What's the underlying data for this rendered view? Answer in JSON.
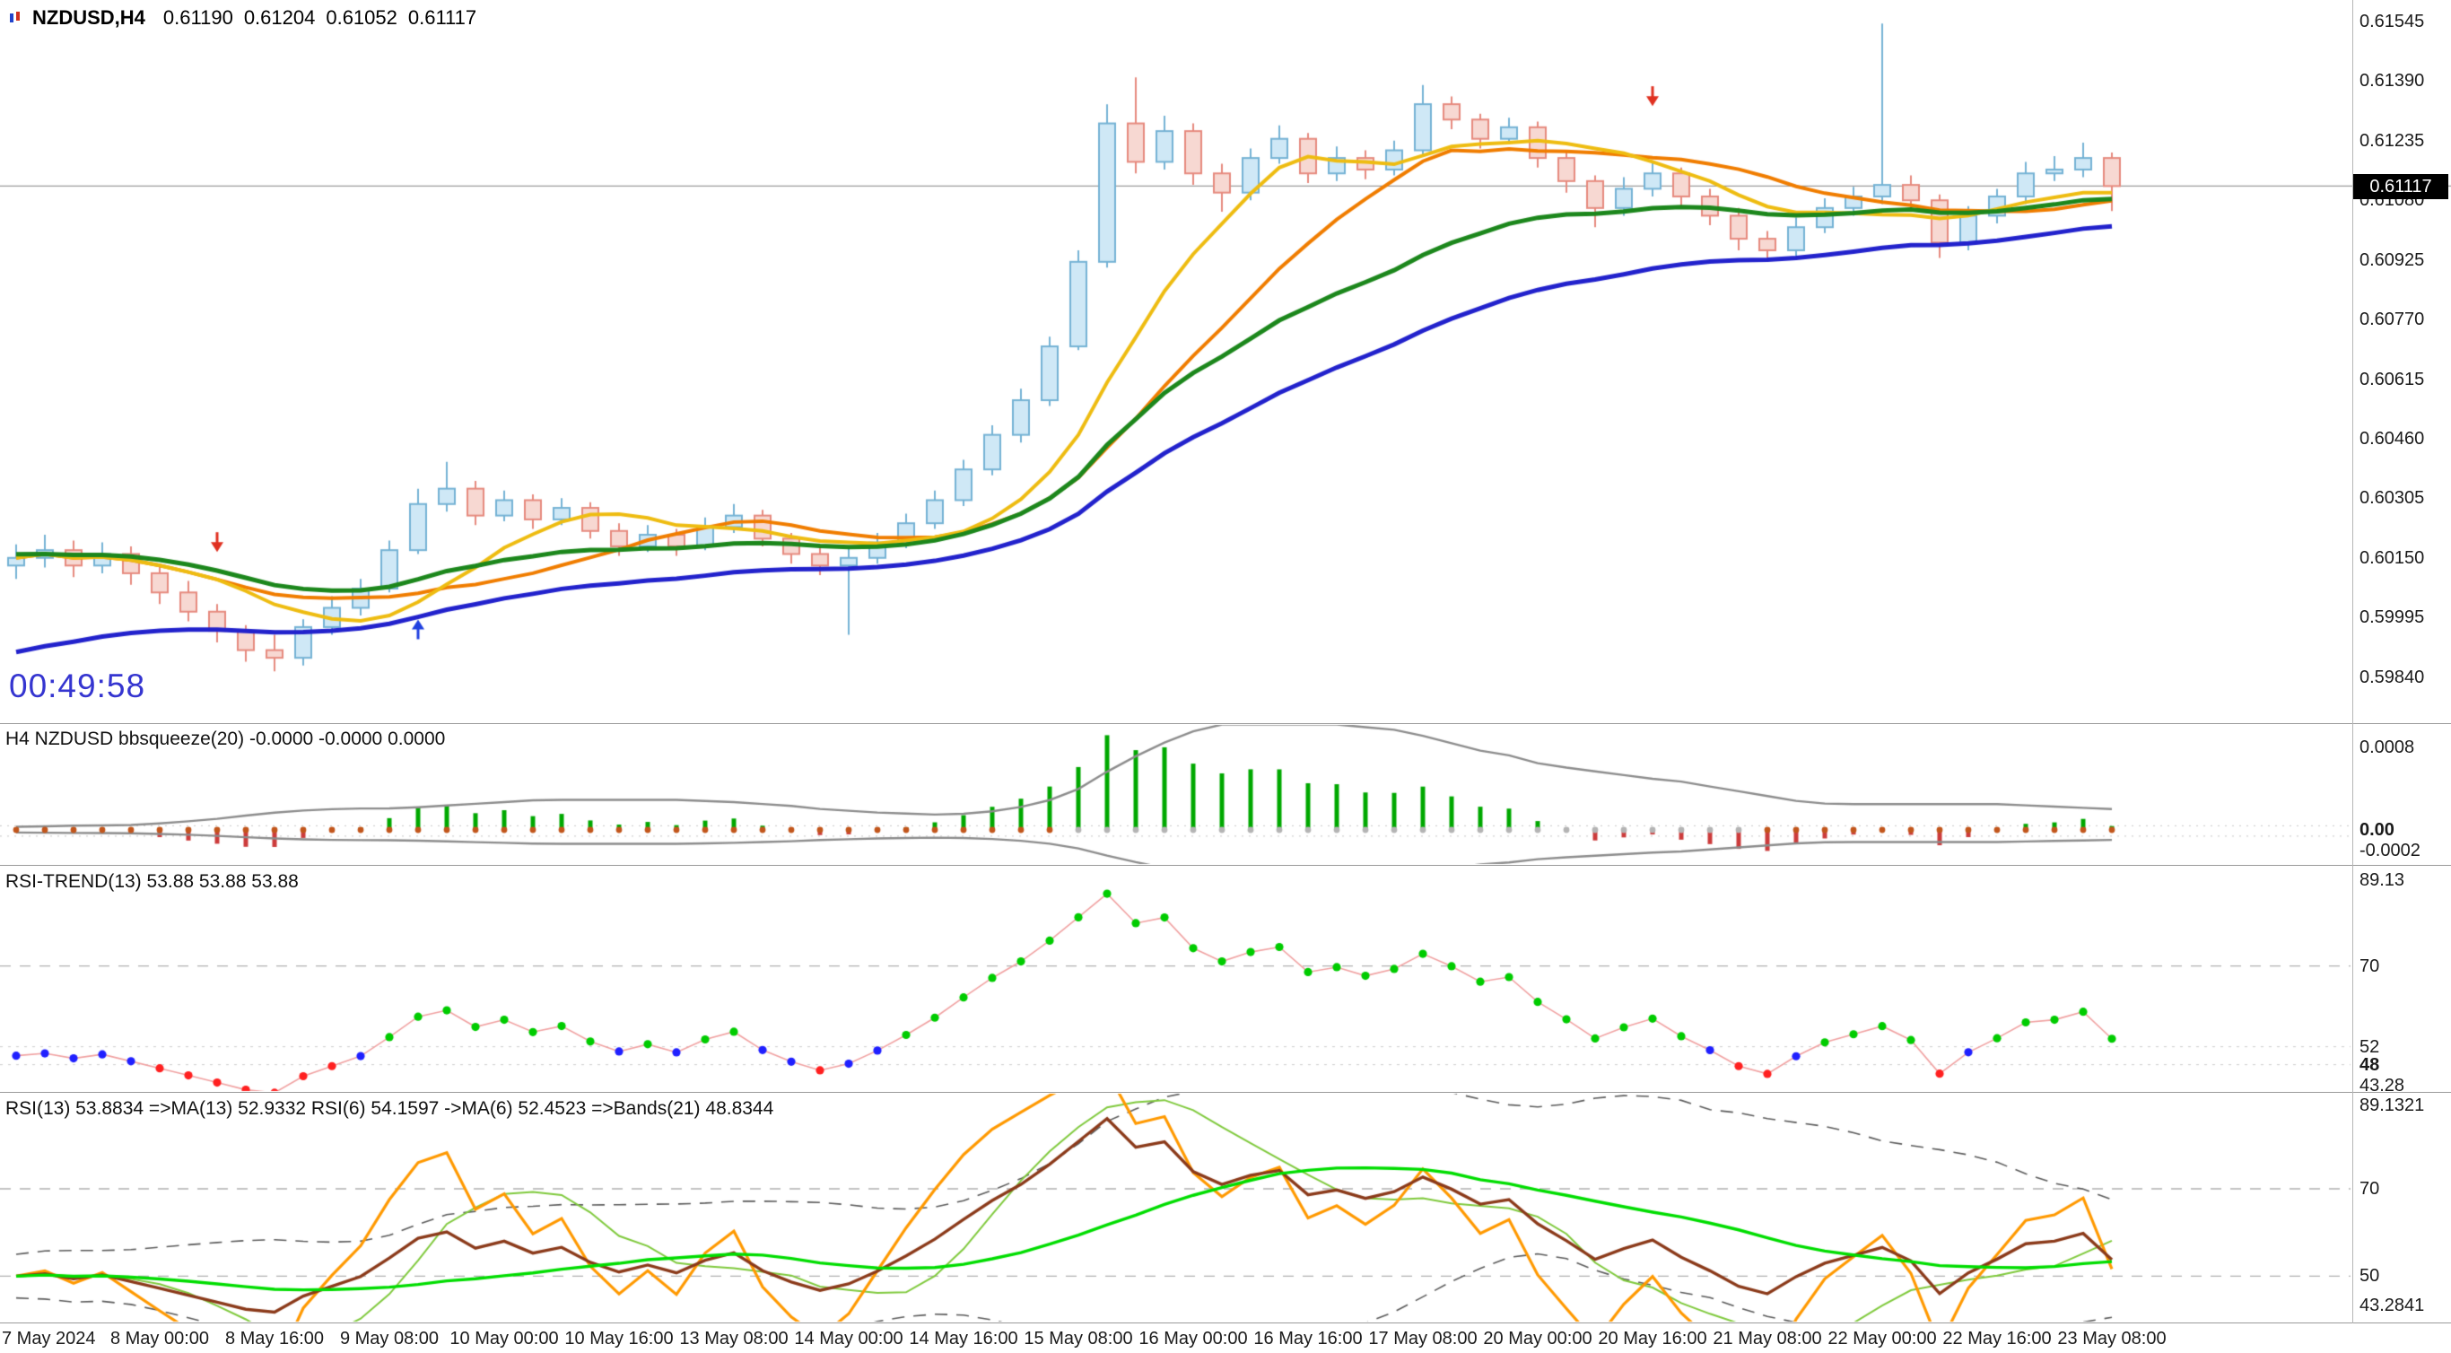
{
  "header": {
    "symbol_period": "NZDUSD,H4",
    "open": "0.61190",
    "high": "0.61204",
    "low": "0.61052",
    "close": "0.61117"
  },
  "main": {
    "timer": "00:49:58",
    "price_badge": "0.61117"
  },
  "panels": {
    "bbsqueeze": {
      "title": "H4 NZDUSD bbsqueeze(20)",
      "values": "-0.0000 -0.0000 0.0000"
    },
    "rsi_trend": {
      "title": "RSI-TREND(13)",
      "values": "53.88 53.88 53.88"
    },
    "rsi": {
      "title": "RSI(13) 53.8834  =>MA(13) 52.9332  RSI(6) 54.1597  ->MA(6) 52.4523  =>Bands(21) 48.8344"
    }
  },
  "chart_data": {
    "type": "candlestick-multi-panel",
    "symbol": "NZDUSD",
    "timeframe": "H4",
    "current_price": 0.61117,
    "price_axis": [
      [
        "0.61545",
        0.61545
      ],
      [
        "0.61390",
        0.6139
      ],
      [
        "0.61235",
        0.61235
      ],
      [
        "0.61080",
        0.6108
      ],
      [
        "0.60925",
        0.60925
      ],
      [
        "0.60770",
        0.6077
      ],
      [
        "0.60615",
        0.60615
      ],
      [
        "0.60460",
        0.6046
      ],
      [
        "0.60305",
        0.60305
      ],
      [
        "0.60150",
        0.6015
      ],
      [
        "0.59995",
        0.59995
      ],
      [
        "0.59840",
        0.5984
      ]
    ],
    "bb_axis": [
      [
        "0.0008",
        0.0008,
        false
      ],
      [
        "0.00",
        0,
        true
      ],
      [
        "-0.0002",
        -0.0002,
        false
      ]
    ],
    "rt_axis": [
      [
        "89.13",
        89.13,
        false
      ],
      [
        "70",
        70,
        false
      ],
      [
        "52",
        52,
        false
      ],
      [
        "48",
        48,
        true
      ],
      [
        "43.28",
        43.28,
        false
      ]
    ],
    "rsi_axis": [
      [
        "89.1321",
        89.1321,
        false
      ],
      [
        "70",
        70,
        false
      ],
      [
        "50",
        50,
        false
      ],
      [
        "43.2841",
        43.2841,
        false
      ]
    ],
    "time_labels": [
      [
        "7 May 2024",
        0
      ],
      [
        "8 May 00:00",
        5
      ],
      [
        "8 May 16:00",
        9
      ],
      [
        "9 May 08:00",
        13
      ],
      [
        "10 May 00:00",
        17
      ],
      [
        "10 May 16:00",
        21
      ],
      [
        "13 May 08:00",
        25
      ],
      [
        "14 May 00:00",
        29
      ],
      [
        "14 May 16:00",
        33
      ],
      [
        "15 May 08:00",
        37
      ],
      [
        "16 May 00:00",
        41
      ],
      [
        "16 May 16:00",
        45
      ],
      [
        "17 May 08:00",
        49
      ],
      [
        "20 May 00:00",
        53
      ],
      [
        "20 May 16:00",
        57
      ],
      [
        "21 May 08:00",
        61
      ],
      [
        "22 May 00:00",
        65
      ],
      [
        "22 May 16:00",
        69
      ],
      [
        "23 May 08:00",
        73
      ]
    ],
    "candles": [
      [
        0.6013,
        0.60185,
        0.60095,
        0.6015
      ],
      [
        0.6015,
        0.6021,
        0.60125,
        0.6017
      ],
      [
        0.6017,
        0.60195,
        0.601,
        0.6013
      ],
      [
        0.6013,
        0.6019,
        0.6011,
        0.6016
      ],
      [
        0.6016,
        0.6018,
        0.6008,
        0.6011
      ],
      [
        0.6011,
        0.6013,
        0.6003,
        0.6006
      ],
      [
        0.6006,
        0.6009,
        0.59985,
        0.6001
      ],
      [
        0.6001,
        0.6003,
        0.5993,
        0.5996
      ],
      [
        0.5996,
        0.59975,
        0.5988,
        0.5991
      ],
      [
        0.5991,
        0.5995,
        0.59855,
        0.5989
      ],
      [
        0.5989,
        0.5999,
        0.5987,
        0.5997
      ],
      [
        0.5997,
        0.6005,
        0.5995,
        0.6002
      ],
      [
        0.6002,
        0.60095,
        0.6,
        0.6007
      ],
      [
        0.6007,
        0.60195,
        0.6006,
        0.6017
      ],
      [
        0.6017,
        0.6033,
        0.6016,
        0.6029
      ],
      [
        0.6029,
        0.604,
        0.6027,
        0.6033
      ],
      [
        0.6033,
        0.6035,
        0.60235,
        0.6026
      ],
      [
        0.6026,
        0.60325,
        0.60245,
        0.603
      ],
      [
        0.603,
        0.60315,
        0.60225,
        0.6025
      ],
      [
        0.6025,
        0.60305,
        0.60235,
        0.6028
      ],
      [
        0.6028,
        0.60295,
        0.602,
        0.6022
      ],
      [
        0.6022,
        0.6024,
        0.60155,
        0.6018
      ],
      [
        0.6018,
        0.60235,
        0.60165,
        0.6021
      ],
      [
        0.6021,
        0.60225,
        0.60155,
        0.6018
      ],
      [
        0.6018,
        0.60255,
        0.6017,
        0.6023
      ],
      [
        0.6023,
        0.6029,
        0.60215,
        0.6026
      ],
      [
        0.6026,
        0.60275,
        0.6018,
        0.602
      ],
      [
        0.602,
        0.60215,
        0.60135,
        0.6016
      ],
      [
        0.6016,
        0.6018,
        0.60105,
        0.6013
      ],
      [
        0.6013,
        0.60175,
        0.5995,
        0.6015
      ],
      [
        0.6015,
        0.60215,
        0.60135,
        0.6019
      ],
      [
        0.6019,
        0.60265,
        0.60175,
        0.6024
      ],
      [
        0.6024,
        0.60325,
        0.60225,
        0.603
      ],
      [
        0.603,
        0.60405,
        0.60285,
        0.6038
      ],
      [
        0.6038,
        0.60495,
        0.60365,
        0.6047
      ],
      [
        0.6047,
        0.6059,
        0.6045,
        0.6056
      ],
      [
        0.6056,
        0.60725,
        0.60545,
        0.607
      ],
      [
        0.607,
        0.6095,
        0.6069,
        0.6092
      ],
      [
        0.6092,
        0.6133,
        0.60905,
        0.6128
      ],
      [
        0.6128,
        0.614,
        0.6115,
        0.6118
      ],
      [
        0.6118,
        0.613,
        0.6116,
        0.6126
      ],
      [
        0.6126,
        0.6128,
        0.6112,
        0.6115
      ],
      [
        0.6115,
        0.61175,
        0.6105,
        0.611
      ],
      [
        0.611,
        0.61215,
        0.6108,
        0.6119
      ],
      [
        0.6119,
        0.61275,
        0.61175,
        0.6124
      ],
      [
        0.6124,
        0.61255,
        0.61125,
        0.6115
      ],
      [
        0.6115,
        0.6122,
        0.6113,
        0.6119
      ],
      [
        0.6119,
        0.6121,
        0.61135,
        0.6116
      ],
      [
        0.6116,
        0.61235,
        0.61145,
        0.6121
      ],
      [
        0.6121,
        0.6138,
        0.61195,
        0.6133
      ],
      [
        0.6133,
        0.6135,
        0.61265,
        0.6129
      ],
      [
        0.6129,
        0.61305,
        0.61215,
        0.6124
      ],
      [
        0.6124,
        0.61295,
        0.61225,
        0.6127
      ],
      [
        0.6127,
        0.61285,
        0.61165,
        0.6119
      ],
      [
        0.6119,
        0.61205,
        0.611,
        0.6113
      ],
      [
        0.6113,
        0.61145,
        0.6101,
        0.6106
      ],
      [
        0.6106,
        0.6114,
        0.6104,
        0.6111
      ],
      [
        0.6111,
        0.6118,
        0.6109,
        0.6115
      ],
      [
        0.6115,
        0.61165,
        0.6106,
        0.6109
      ],
      [
        0.6109,
        0.6111,
        0.61015,
        0.6104
      ],
      [
        0.6104,
        0.6106,
        0.6095,
        0.6098
      ],
      [
        0.6098,
        0.61,
        0.6093,
        0.6095
      ],
      [
        0.6095,
        0.61035,
        0.60935,
        0.6101
      ],
      [
        0.6101,
        0.61085,
        0.60995,
        0.6106
      ],
      [
        0.6106,
        0.61115,
        0.6104,
        0.6109
      ],
      [
        0.6109,
        0.6154,
        0.6107,
        0.6112
      ],
      [
        0.6112,
        0.61145,
        0.61055,
        0.6108
      ],
      [
        0.6108,
        0.61095,
        0.6093,
        0.6097
      ],
      [
        0.6097,
        0.61065,
        0.6095,
        0.6104
      ],
      [
        0.6104,
        0.6111,
        0.6102,
        0.6109
      ],
      [
        0.6109,
        0.6118,
        0.6107,
        0.6115
      ],
      [
        0.6115,
        0.61195,
        0.6113,
        0.6116
      ],
      [
        0.6116,
        0.6123,
        0.6114,
        0.6119
      ],
      [
        0.6119,
        0.61204,
        0.61052,
        0.61117
      ]
    ],
    "moving_averages": [
      {
        "name": "ma-fast",
        "type": "sma",
        "period": 8,
        "color": "#eebc11",
        "width": 3
      },
      {
        "name": "ma-mid",
        "type": "sma",
        "period": 13,
        "color": "#f07d00",
        "width": 3
      },
      {
        "name": "ma-slow",
        "type": "ema",
        "period": 21,
        "color": "#1c871c",
        "width": 5
      },
      {
        "name": "ma-slowest",
        "type": "ema",
        "period": 34,
        "color": "#2222cc",
        "width": 5
      }
    ],
    "markers": [
      [
        7,
        0.6017,
        "sell"
      ],
      [
        14,
        0.59985,
        "buy"
      ],
      [
        57,
        0.6133,
        "sell"
      ]
    ],
    "colors": {
      "up_fill": "#cfe8f6",
      "up_border": "#74b2d4",
      "down_fill": "#f7d8d2",
      "down_border": "#e68a7e",
      "bull_bar": "#00a800",
      "bear_bar": "#cc3b3b",
      "envelope": "#8c8c8c",
      "squeeze_dot": "#c2561c",
      "squeeze_dot_off": "#b4b4b4",
      "rsi_dot_up": "#00cc00",
      "rsi_dot_down": "#ff2020",
      "rsi_dot_flat": "#2020ff",
      "rsi_link": "#f0a0a0",
      "rsi13": "#8b3a1a",
      "ma13": "#00dd00",
      "rsi6": "#ff9900",
      "ma6": "#7fc93c",
      "bands": "#5a5a5a",
      "price_line": "#9b9b9b",
      "sell_arrow": "#e03020",
      "buy_arrow": "#2040e0",
      "level_dash": "#b0b0b0"
    }
  }
}
